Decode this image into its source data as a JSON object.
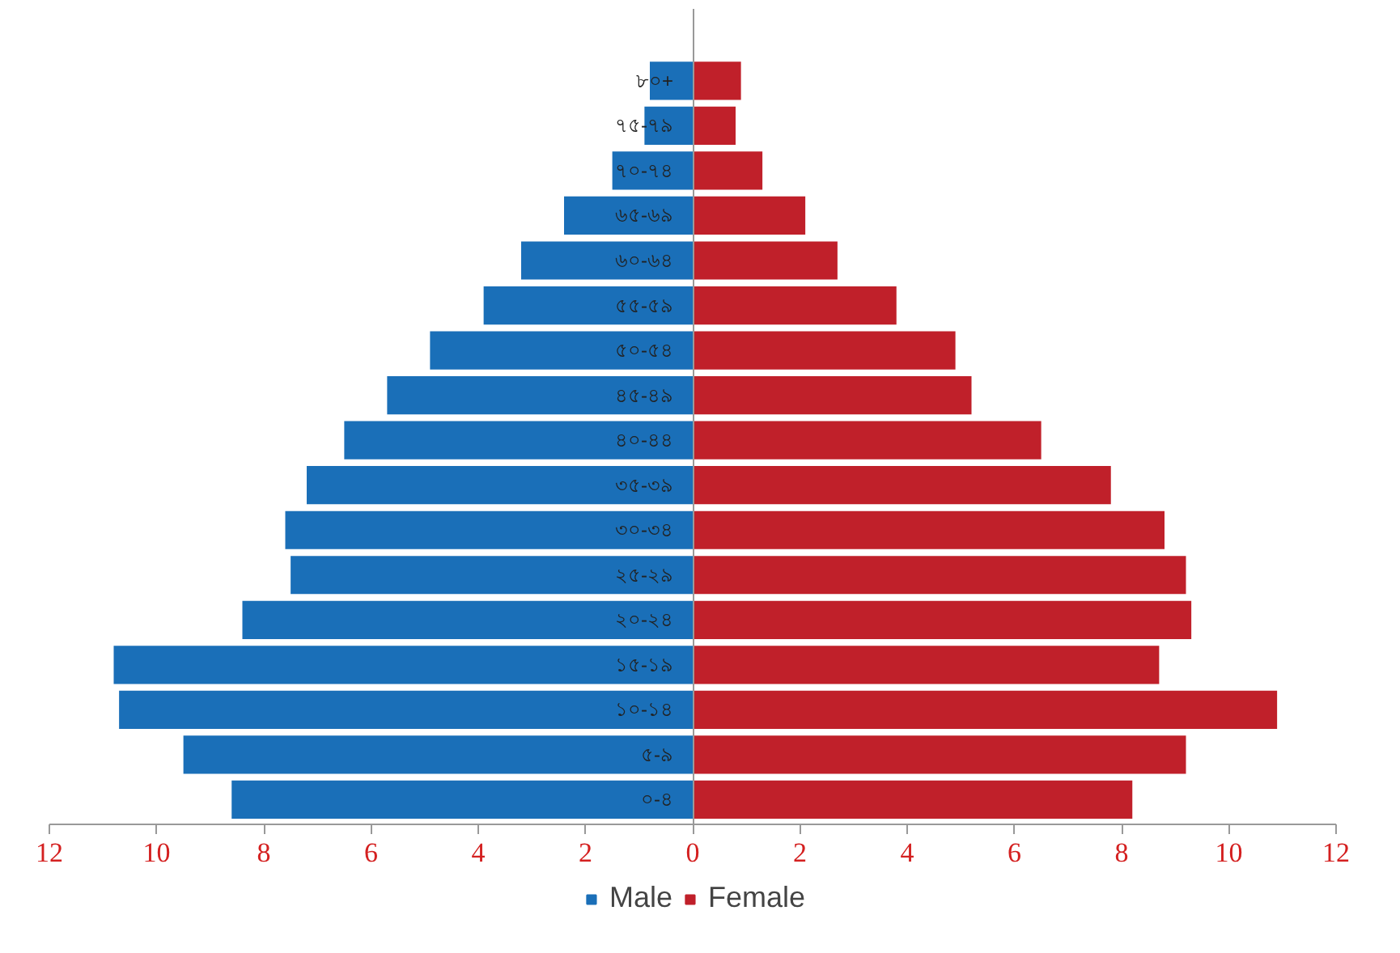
{
  "chart_data": {
    "type": "bar",
    "orientation": "horizontal",
    "stacked": true,
    "categories": [
      "৮০+",
      "৭৫-৭৯",
      "৭০-৭৪",
      "৬৫-৬৯",
      "৬০-৬৪",
      "৫৫-৫৯",
      "৫০-৫৪",
      "৪৫-৪৯",
      "৪০-৪৪",
      "৩৫-৩৯",
      "৩০-৩৪",
      "২৫-২৯",
      "২০-২৪",
      "১৫-১৯",
      "১০-১৪",
      "৫-৯",
      "০-৪"
    ],
    "series": [
      {
        "name": "Male",
        "color": "#1a6fb8",
        "values": [
          -0.8,
          -0.9,
          -1.5,
          -2.4,
          -3.2,
          -3.9,
          -4.9,
          -5.7,
          -6.5,
          -7.2,
          -7.6,
          -7.5,
          -8.4,
          -10.8,
          -10.7,
          -9.5,
          -8.6
        ]
      },
      {
        "name": "Female",
        "color": "#c0202a",
        "values": [
          0.9,
          0.8,
          1.3,
          2.1,
          2.7,
          3.8,
          4.9,
          5.2,
          6.5,
          7.8,
          8.8,
          9.2,
          9.3,
          8.7,
          10.9,
          9.2,
          8.2
        ]
      }
    ],
    "xlim": [
      -12,
      12
    ],
    "xticks": [
      {
        "value": -12,
        "label": "12"
      },
      {
        "value": -10,
        "label": "10"
      },
      {
        "value": -8,
        "label": "8"
      },
      {
        "value": -6,
        "label": "6"
      },
      {
        "value": -4,
        "label": "4"
      },
      {
        "value": -2,
        "label": "2"
      },
      0,
      2,
      4,
      6,
      8,
      10,
      12
    ],
    "grid": false,
    "legend": "bottom"
  }
}
